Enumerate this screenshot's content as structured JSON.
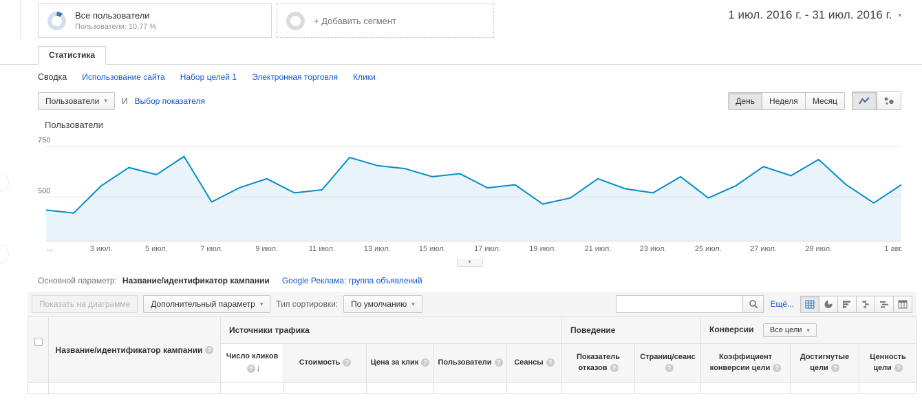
{
  "colors": {
    "link": "#1155cc",
    "line": "#058dc7",
    "area": "#e8f3fa"
  },
  "icons": {
    "caret_down": "▾",
    "sort_desc": "↓",
    "collapse": "▾",
    "help": "?"
  },
  "header": {
    "segment_title": "Все пользователи",
    "segment_subtitle": "Пользователи: 10,77 %",
    "add_segment": "+ Добавить сегмент",
    "date_range": "1 июл. 2016 г. - 31 июл. 2016 г."
  },
  "tabs": {
    "main": "Статистика"
  },
  "subnav": {
    "items": [
      "Сводка",
      "Использование сайта",
      "Набор целей 1",
      "Электронная торговля",
      "Клики"
    ]
  },
  "controls": {
    "metric_selector": "Пользователи",
    "conjunction": "И",
    "select_metric_link": "Выбор показателя",
    "granularity": [
      "День",
      "Неделя",
      "Месяц"
    ]
  },
  "chart_data": {
    "type": "line",
    "title": "Пользователи",
    "x_start": "1 июл. 2016",
    "x_end": "1 авг. 2016",
    "x_tick_labels": [
      "...",
      "3 июл.",
      "5 июл.",
      "7 июл.",
      "9 июл.",
      "11 июл.",
      "13 июл.",
      "15 июл.",
      "17 июл.",
      "19 июл.",
      "21 июл.",
      "23 июл.",
      "25 июл.",
      "27 июл.",
      "29 июл.",
      "1 авг."
    ],
    "series": [
      {
        "name": "Пользователи",
        "values": [
          435,
          420,
          555,
          645,
          610,
          700,
          475,
          545,
          590,
          520,
          535,
          695,
          655,
          640,
          600,
          615,
          545,
          560,
          465,
          495,
          590,
          540,
          520,
          600,
          495,
          555,
          650,
          605,
          685,
          560,
          470,
          560
        ]
      }
    ],
    "yticks": [
      750,
      500
    ],
    "ylim": [
      280,
      790
    ],
    "grid": true,
    "legend": false,
    "line_color": "#058dc7",
    "area_color": "#e8f3fa"
  },
  "dimension_bar": {
    "label": "Основной параметр:",
    "primary": "Название/идентификатор кампании",
    "alternative": "Google Реклама: группа объявлений"
  },
  "toolbar": {
    "plot_rows": "Показать на диаграмме",
    "secondary_dimension": "Дополнительный параметр",
    "sort_type_label": "Тип сортировки:",
    "sort_type_value": "По умолчанию",
    "search_value": "",
    "more": "Ещё..."
  },
  "table": {
    "dimension_column": "Название/идентификатор кампании",
    "groups": [
      {
        "label": "Источники трафика",
        "span": 5
      },
      {
        "label": "Поведение",
        "span": 2
      },
      {
        "label": "Конверсии",
        "span": 3,
        "goal_selector": "Все цели"
      }
    ],
    "columns": [
      "Число кликов",
      "Стоимость",
      "Цена за клик",
      "Пользователи",
      "Сеансы",
      "Показатель отказов",
      "Страниц/сеанс",
      "Коэффициент конверсии цели",
      "Достигнутые цели",
      "Ценность цели"
    ],
    "sorted_column": "Число кликов",
    "sort_direction": "desc"
  }
}
